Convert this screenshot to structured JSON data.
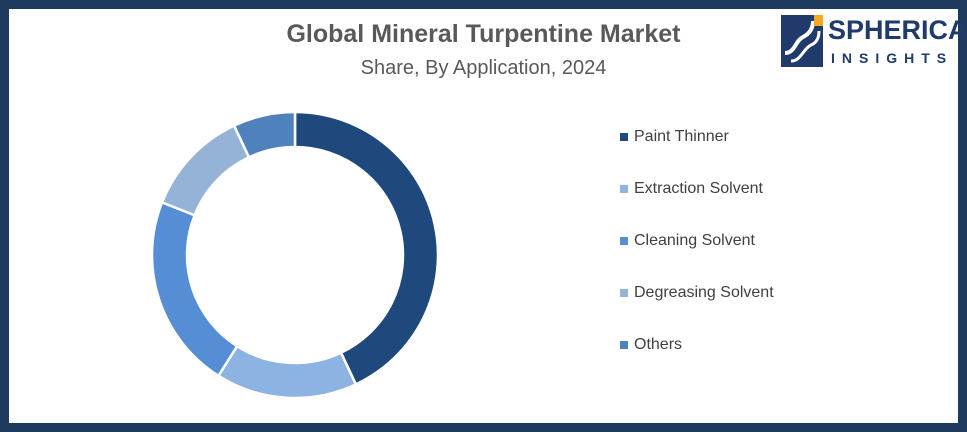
{
  "header": {
    "title": "Global Mineral Turpentine Market",
    "subtitle": "Share, By Application, 2024"
  },
  "logo": {
    "line1": "SPHERICAL",
    "line2": "INSIGHTS",
    "icon": "spherical-insights-logo"
  },
  "colors": {
    "frame": "#1f3a5f",
    "paint_thinner": "#1f497d",
    "extraction_solvent": "#8db3e2",
    "cleaning_solvent": "#558ed5",
    "degreasing_solvent": "#95b3d7",
    "others": "#4f81bd"
  },
  "chart_data": {
    "type": "pie",
    "style": "donut",
    "title": "Global Mineral Turpentine Market",
    "subtitle": "Share, By Application, 2024",
    "legend_position": "right",
    "categories": [
      "Paint Thinner",
      "Extraction Solvent",
      "Cleaning Solvent",
      "Degreasing Solvent",
      "Others"
    ],
    "values": [
      43,
      16,
      22,
      12,
      7
    ],
    "colors": [
      "#1f497d",
      "#8db3e2",
      "#558ed5",
      "#95b3d7",
      "#4f81bd"
    ]
  }
}
